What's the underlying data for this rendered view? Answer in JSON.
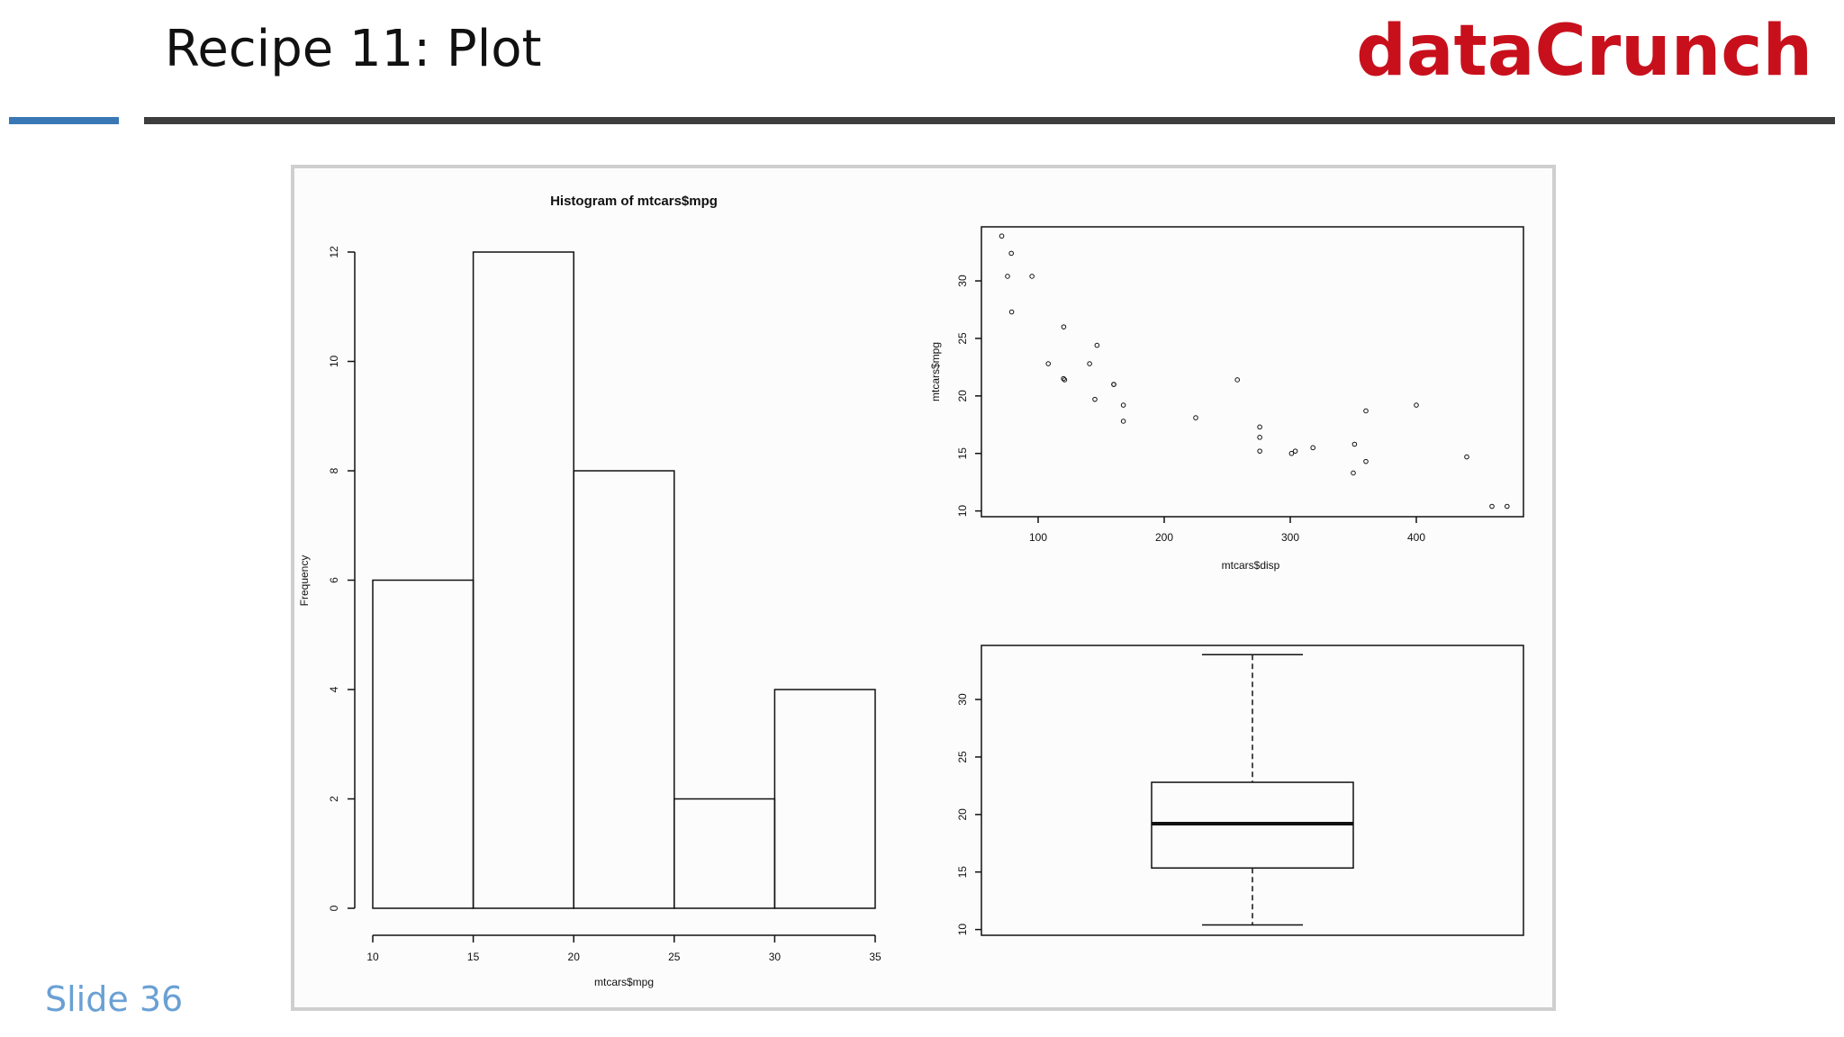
{
  "slide": {
    "title": "Recipe 11: Plot",
    "logo": "dataCrunch",
    "footer": "Slide 36",
    "colors": {
      "title": "#111111",
      "logo": "#c8101c",
      "accent_rule": "#3a78b5",
      "rule": "#3d3d3d",
      "footer": "#6aa0d4"
    }
  },
  "chart_data": [
    {
      "type": "bar",
      "subtype": "histogram",
      "title": "Histogram of mtcars$mpg",
      "xlabel": "mtcars$mpg",
      "ylabel": "Frequency",
      "bins": [
        [
          10,
          15
        ],
        [
          15,
          20
        ],
        [
          20,
          25
        ],
        [
          25,
          30
        ],
        [
          30,
          35
        ]
      ],
      "values": [
        6,
        12,
        8,
        2,
        4
      ],
      "xticks": [
        "10",
        "15",
        "20",
        "25",
        "30",
        "35"
      ],
      "yticks": [
        "0",
        "2",
        "4",
        "6",
        "8",
        "10",
        "12"
      ],
      "xlim": [
        10,
        35
      ],
      "ylim": [
        0,
        12
      ]
    },
    {
      "type": "scatter",
      "title": "",
      "xlabel": "mtcars$disp",
      "ylabel": "mtcars$mpg",
      "xticks": [
        "100",
        "200",
        "300",
        "400"
      ],
      "yticks": [
        "10",
        "15",
        "20",
        "25",
        "30"
      ],
      "xlim": [
        55,
        485
      ],
      "ylim": [
        9.5,
        34.7
      ],
      "points": [
        [
          160,
          21.0
        ],
        [
          160,
          21.0
        ],
        [
          108,
          22.8
        ],
        [
          258,
          21.4
        ],
        [
          360,
          18.7
        ],
        [
          225,
          18.1
        ],
        [
          360,
          14.3
        ],
        [
          146.7,
          24.4
        ],
        [
          140.8,
          22.8
        ],
        [
          167.6,
          19.2
        ],
        [
          167.6,
          17.8
        ],
        [
          275.8,
          16.4
        ],
        [
          275.8,
          17.3
        ],
        [
          275.8,
          15.2
        ],
        [
          472,
          10.4
        ],
        [
          460,
          10.4
        ],
        [
          440,
          14.7
        ],
        [
          78.7,
          32.4
        ],
        [
          75.7,
          30.4
        ],
        [
          71.1,
          33.9
        ],
        [
          120.1,
          21.5
        ],
        [
          318,
          15.5
        ],
        [
          304,
          15.2
        ],
        [
          350,
          13.3
        ],
        [
          400,
          19.2
        ],
        [
          79,
          27.3
        ],
        [
          120.3,
          26.0
        ],
        [
          95.1,
          30.4
        ],
        [
          351,
          15.8
        ],
        [
          145,
          19.7
        ],
        [
          301,
          15.0
        ],
        [
          121,
          21.4
        ]
      ]
    },
    {
      "type": "box",
      "title": "",
      "yticks": [
        "10",
        "15",
        "20",
        "25",
        "30"
      ],
      "ylim": [
        9.5,
        34.7
      ],
      "min": 10.4,
      "q1": 15.35,
      "median": 19.2,
      "q3": 22.8,
      "max": 33.9
    }
  ]
}
